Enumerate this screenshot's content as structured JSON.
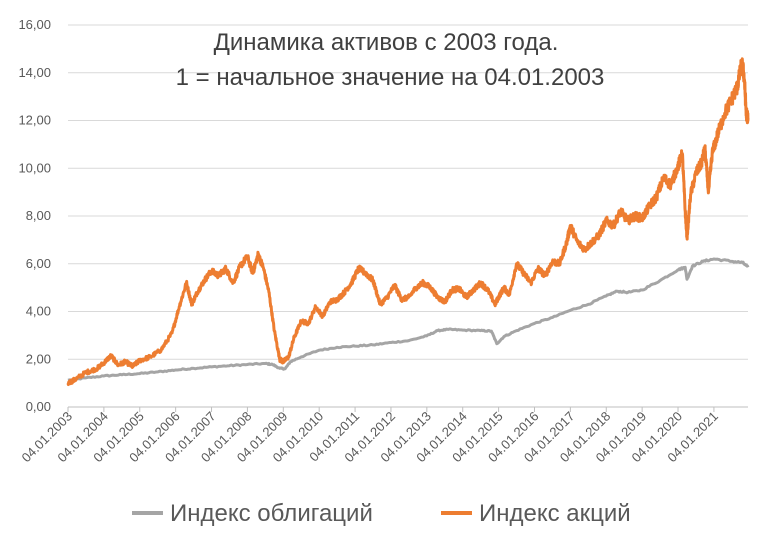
{
  "chart_data": {
    "type": "line",
    "title": [
      "Динамика активов с 2003 года.",
      "1 = начальное значение на 04.01.2003"
    ],
    "xlabel": "",
    "ylabel": "",
    "ylim": [
      0,
      16
    ],
    "y_ticks": [
      "0,00",
      "2,00",
      "4,00",
      "6,00",
      "8,00",
      "10,00",
      "12,00",
      "14,00",
      "16,00"
    ],
    "x_ticks": [
      "04.01.2003",
      "04.01.2004",
      "04.01.2005",
      "04.01.2006",
      "04.01.2007",
      "04.01.2008",
      "04.01.2009",
      "04.01.2010",
      "04.01.2011",
      "04.01.2012",
      "04.01.2013",
      "04.01.2014",
      "04.01.2015",
      "04.01.2016",
      "04.01.2017",
      "04.01.2018",
      "04.01.2019",
      "04.01.2020",
      "04.01.2021"
    ],
    "x_range": [
      2003.0,
      2021.95
    ],
    "grid": "horizontal",
    "legend_position": "bottom",
    "series": [
      {
        "name": "Индекс облигаций",
        "color": "#a5a5a5",
        "points": [
          [
            2003.0,
            1.12
          ],
          [
            2003.5,
            1.22
          ],
          [
            2004.0,
            1.3
          ],
          [
            2004.5,
            1.35
          ],
          [
            2005.0,
            1.4
          ],
          [
            2005.5,
            1.47
          ],
          [
            2006.0,
            1.55
          ],
          [
            2006.5,
            1.62
          ],
          [
            2007.0,
            1.68
          ],
          [
            2007.5,
            1.73
          ],
          [
            2008.0,
            1.78
          ],
          [
            2008.5,
            1.82
          ],
          [
            2008.7,
            1.78
          ],
          [
            2008.9,
            1.62
          ],
          [
            2009.05,
            1.6
          ],
          [
            2009.2,
            1.9
          ],
          [
            2009.5,
            2.1
          ],
          [
            2010.0,
            2.38
          ],
          [
            2010.5,
            2.5
          ],
          [
            2011.0,
            2.55
          ],
          [
            2011.5,
            2.6
          ],
          [
            2012.0,
            2.7
          ],
          [
            2012.5,
            2.78
          ],
          [
            2013.0,
            2.98
          ],
          [
            2013.3,
            3.2
          ],
          [
            2013.6,
            3.25
          ],
          [
            2014.0,
            3.22
          ],
          [
            2014.5,
            3.2
          ],
          [
            2014.8,
            3.18
          ],
          [
            2014.95,
            2.65
          ],
          [
            2015.15,
            2.95
          ],
          [
            2015.5,
            3.2
          ],
          [
            2016.0,
            3.5
          ],
          [
            2016.5,
            3.75
          ],
          [
            2017.0,
            4.05
          ],
          [
            2017.5,
            4.3
          ],
          [
            2018.0,
            4.65
          ],
          [
            2018.3,
            4.85
          ],
          [
            2018.6,
            4.8
          ],
          [
            2019.0,
            4.9
          ],
          [
            2019.5,
            5.3
          ],
          [
            2020.0,
            5.75
          ],
          [
            2020.2,
            5.85
          ],
          [
            2020.25,
            5.35
          ],
          [
            2020.4,
            5.9
          ],
          [
            2020.7,
            6.1
          ],
          [
            2021.0,
            6.2
          ],
          [
            2021.5,
            6.1
          ],
          [
            2021.8,
            6.05
          ],
          [
            2021.95,
            5.85
          ]
        ]
      },
      {
        "name": "Индекс акций",
        "color": "#ed7d31",
        "points": [
          [
            2003.0,
            1.0
          ],
          [
            2003.2,
            1.15
          ],
          [
            2003.5,
            1.45
          ],
          [
            2003.8,
            1.6
          ],
          [
            2004.0,
            1.85
          ],
          [
            2004.2,
            2.15
          ],
          [
            2004.4,
            1.75
          ],
          [
            2004.6,
            1.9
          ],
          [
            2004.8,
            1.7
          ],
          [
            2005.0,
            1.95
          ],
          [
            2005.3,
            2.1
          ],
          [
            2005.6,
            2.4
          ],
          [
            2005.9,
            3.1
          ],
          [
            2006.1,
            4.2
          ],
          [
            2006.3,
            5.2
          ],
          [
            2006.45,
            4.3
          ],
          [
            2006.6,
            4.8
          ],
          [
            2006.8,
            5.3
          ],
          [
            2007.0,
            5.7
          ],
          [
            2007.2,
            5.5
          ],
          [
            2007.4,
            5.8
          ],
          [
            2007.6,
            5.2
          ],
          [
            2007.8,
            5.9
          ],
          [
            2008.0,
            6.3
          ],
          [
            2008.15,
            5.6
          ],
          [
            2008.3,
            6.4
          ],
          [
            2008.45,
            5.8
          ],
          [
            2008.6,
            4.8
          ],
          [
            2008.75,
            3.2
          ],
          [
            2008.9,
            2.0
          ],
          [
            2009.0,
            1.9
          ],
          [
            2009.15,
            2.1
          ],
          [
            2009.3,
            2.9
          ],
          [
            2009.5,
            3.6
          ],
          [
            2009.7,
            3.5
          ],
          [
            2009.9,
            4.2
          ],
          [
            2010.1,
            3.8
          ],
          [
            2010.3,
            4.4
          ],
          [
            2010.5,
            4.5
          ],
          [
            2010.7,
            4.8
          ],
          [
            2010.9,
            5.2
          ],
          [
            2011.1,
            5.8
          ],
          [
            2011.3,
            5.6
          ],
          [
            2011.5,
            5.3
          ],
          [
            2011.7,
            4.3
          ],
          [
            2011.9,
            4.6
          ],
          [
            2012.1,
            5.1
          ],
          [
            2012.3,
            4.5
          ],
          [
            2012.5,
            4.6
          ],
          [
            2012.7,
            5.0
          ],
          [
            2012.9,
            5.2
          ],
          [
            2013.1,
            5.0
          ],
          [
            2013.3,
            4.6
          ],
          [
            2013.5,
            4.4
          ],
          [
            2013.7,
            4.9
          ],
          [
            2013.9,
            4.95
          ],
          [
            2014.1,
            4.6
          ],
          [
            2014.3,
            4.9
          ],
          [
            2014.5,
            5.2
          ],
          [
            2014.7,
            4.9
          ],
          [
            2014.9,
            4.3
          ],
          [
            2015.0,
            4.6
          ],
          [
            2015.15,
            5.0
          ],
          [
            2015.3,
            4.7
          ],
          [
            2015.5,
            6.0
          ],
          [
            2015.7,
            5.6
          ],
          [
            2015.9,
            5.2
          ],
          [
            2016.1,
            5.8
          ],
          [
            2016.3,
            5.5
          ],
          [
            2016.5,
            6.1
          ],
          [
            2016.7,
            6.0
          ],
          [
            2016.9,
            6.9
          ],
          [
            2017.0,
            7.6
          ],
          [
            2017.2,
            6.9
          ],
          [
            2017.4,
            6.6
          ],
          [
            2017.6,
            6.9
          ],
          [
            2017.8,
            7.2
          ],
          [
            2018.0,
            7.8
          ],
          [
            2018.2,
            7.6
          ],
          [
            2018.4,
            8.2
          ],
          [
            2018.6,
            7.8
          ],
          [
            2018.8,
            8.0
          ],
          [
            2019.0,
            7.9
          ],
          [
            2019.2,
            8.4
          ],
          [
            2019.4,
            8.8
          ],
          [
            2019.6,
            9.6
          ],
          [
            2019.8,
            9.3
          ],
          [
            2020.0,
            10.1
          ],
          [
            2020.12,
            10.6
          ],
          [
            2020.2,
            8.2
          ],
          [
            2020.25,
            7.1
          ],
          [
            2020.35,
            8.9
          ],
          [
            2020.5,
            9.8
          ],
          [
            2020.65,
            10.2
          ],
          [
            2020.75,
            10.8
          ],
          [
            2020.85,
            9.0
          ],
          [
            2020.95,
            10.6
          ],
          [
            2021.1,
            11.4
          ],
          [
            2021.3,
            12.3
          ],
          [
            2021.5,
            12.9
          ],
          [
            2021.65,
            13.4
          ],
          [
            2021.75,
            14.2
          ],
          [
            2021.8,
            14.3
          ],
          [
            2021.85,
            13.7
          ],
          [
            2021.9,
            12.3
          ],
          [
            2021.95,
            12.1
          ]
        ]
      }
    ]
  }
}
